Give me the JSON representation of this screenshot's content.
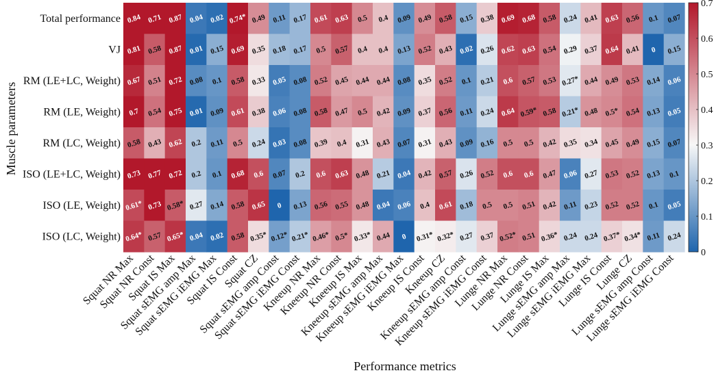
{
  "chart_data": {
    "type": "heatmap",
    "title": "",
    "xlabel": "Performance metrics",
    "ylabel": "Muscle parameters",
    "rows": [
      "Total performance",
      "VJ",
      "RM (LE+LC, Weight)",
      "RM (LE, Weight)",
      "RM (LC, Weight)",
      "ISO (LE+LC, Weight)",
      "ISO (LE, Weight)",
      "ISO (LC, Weight)"
    ],
    "columns": [
      "Squat NR Max",
      "Squat NR Const",
      "Squat IS Max",
      "Squat sEMG amp Max",
      "Squat sEMG iEMG Max",
      "Squat IS Const",
      "Squat CZ",
      "Squat sEMG amp Const",
      "Squat sEMG iEMG Const",
      "Kneeup NR Max",
      "Kneeup NR Const",
      "Kneeup IS Max",
      "Kneeup sEMG amp Max",
      "Kneeup sEMG iEMG Max",
      "Kneeup IS Const",
      "Kneeup CZ",
      "Kneeup sEMG amp Const",
      "Kneeup sEMG iEMG Const",
      "Lunge NR Max",
      "Lunge NR Const",
      "Lunge IS Max",
      "Lunge sEMG amp Max",
      "Lunge sEMG iEMG Max",
      "Lunge IS Const",
      "Lunge CZ",
      "Lunge sEMG amp Const",
      "Lunge sEMG iEMG Const"
    ],
    "cells": [
      [
        "0.84",
        "0.71",
        "0.87",
        "0.04",
        "0.02",
        "0.74*",
        "0.49",
        "0.11",
        "0.17",
        "0.61",
        "0.63",
        "0.5",
        "0.4",
        "0.09",
        "0.49",
        "0.58",
        "0.15",
        "0.38",
        "0.69",
        "0.68",
        "0.58",
        "0.24",
        "0.41",
        "0.63",
        "0.56",
        "0.1",
        "0.07"
      ],
      [
        "0.81",
        "0.58",
        "0.87",
        "0.01",
        "0.15",
        "0.69",
        "0.35",
        "0.18",
        "0.17",
        "0.5",
        "0.57",
        "0.4",
        "0.4",
        "0.13",
        "0.52",
        "0.43",
        "0.02",
        "0.26",
        "0.62",
        "0.63",
        "0.54",
        "0.29",
        "0.37",
        "0.64",
        "0.41",
        "0",
        "0.15"
      ],
      [
        "0.67",
        "0.51",
        "0.72",
        "0.08",
        "0.1",
        "0.58",
        "0.33",
        "0.05",
        "0.08",
        "0.52",
        "0.45",
        "0.44",
        "0.44",
        "0.08",
        "0.35",
        "0.52",
        "0.1",
        "0.21",
        "0.6",
        "0.57",
        "0.53",
        "0.27*",
        "0.44",
        "0.49",
        "0.53",
        "0.14",
        "0.06"
      ],
      [
        "0.7",
        "0.54",
        "0.75",
        "0.01",
        "0.09",
        "0.61",
        "0.38",
        "0.06",
        "0.08",
        "0.58",
        "0.47",
        "0.5",
        "0.42",
        "0.09",
        "0.37",
        "0.56",
        "0.11",
        "0.24",
        "0.64",
        "0.59*",
        "0.58",
        "0.21*",
        "0.48",
        "0.5*",
        "0.54",
        "0.13",
        "0.05"
      ],
      [
        "0.58",
        "0.43",
        "0.62",
        "0.2",
        "0.11",
        "0.5",
        "0.24",
        "0.03",
        "0.08",
        "0.39",
        "0.4",
        "0.31",
        "0.43",
        "0.07",
        "0.31",
        "0.43",
        "0.09",
        "0.16",
        "0.5",
        "0.5",
        "0.42",
        "0.35",
        "0.34",
        "0.45",
        "0.49",
        "0.15",
        "0.07"
      ],
      [
        "0.73",
        "0.77",
        "0.72",
        "0.2",
        "0.1",
        "0.68",
        "0.6",
        "0.07",
        "0.2",
        "0.6",
        "0.63",
        "0.48",
        "0.21",
        "0.04",
        "0.42",
        "0.57",
        "0.26",
        "0.52",
        "0.6",
        "0.6",
        "0.47",
        "0.06",
        "0.27",
        "0.53",
        "0.52",
        "0.13",
        "0.1"
      ],
      [
        "0.61*",
        "0.73",
        "0.58*",
        "0.27",
        "0.14",
        "0.58",
        "0.65",
        "0",
        "0.13",
        "0.56",
        "0.55",
        "0.48",
        "0.04",
        "0.06",
        "0.4",
        "0.61",
        "0.18",
        "0.5",
        "0.5",
        "0.51",
        "0.42",
        "0.11",
        "0.23",
        "0.52",
        "0.52",
        "0.1",
        "0.05"
      ],
      [
        "0.64*",
        "0.57",
        "0.65*",
        "0.04",
        "0.02",
        "0.58",
        "0.35*",
        "0.12*",
        "0.21*",
        "0.46*",
        "0.5*",
        "0.33*",
        "0.44",
        "0",
        "0.31*",
        "0.32*",
        "0.27",
        "0.37",
        "0.52*",
        "0.51",
        "0.36*",
        "0.24",
        "0.24",
        "0.37*",
        "0.34*",
        "0.11",
        "0.24"
      ]
    ],
    "colorbar": {
      "range": [
        0,
        0.7
      ],
      "ticks": [
        "0",
        "0.1",
        "0.2",
        "0.3",
        "0.4",
        "0.5",
        "0.6",
        "0.7"
      ],
      "placement": "right",
      "colormap": [
        "#1f65ad",
        "#f7f7f7",
        "#b2182b"
      ]
    },
    "grid": false
  }
}
